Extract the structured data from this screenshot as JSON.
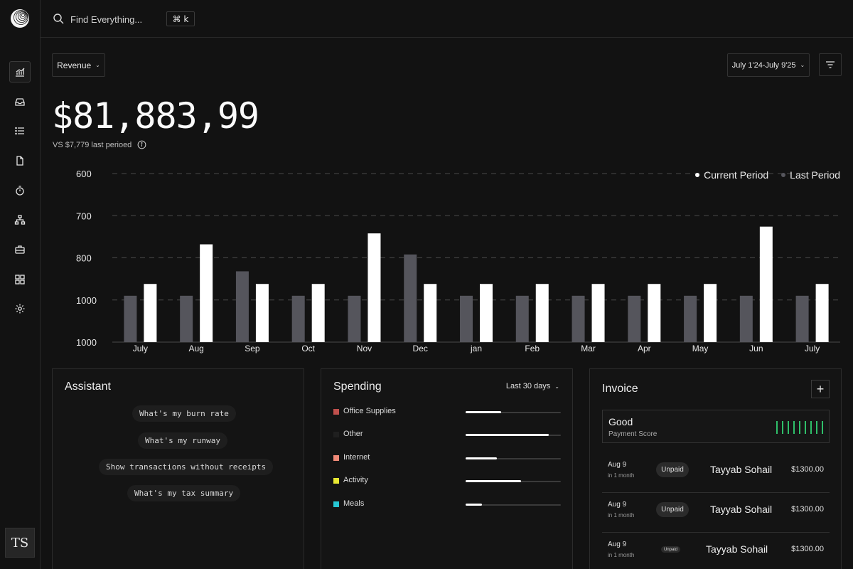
{
  "search": {
    "placeholder": "Find Everything...",
    "shortcut": "⌘ k"
  },
  "nav": [
    {
      "name": "analytics",
      "icon": "chart-icon"
    },
    {
      "name": "inbox",
      "icon": "inbox-icon"
    },
    {
      "name": "list",
      "icon": "list-icon"
    },
    {
      "name": "document",
      "icon": "document-icon"
    },
    {
      "name": "timer",
      "icon": "timer-icon"
    },
    {
      "name": "network",
      "icon": "network-icon"
    },
    {
      "name": "briefcase",
      "icon": "briefcase-icon"
    },
    {
      "name": "apps",
      "icon": "grid-icon"
    },
    {
      "name": "settings",
      "icon": "gear-icon"
    }
  ],
  "user": {
    "initials": "TS"
  },
  "header": {
    "metric": "Revenue",
    "date_range": "July 1'24-July 9'25",
    "total": "$81,883,99",
    "comparison": "VS $7,779 last perioed"
  },
  "chart_data": {
    "type": "bar",
    "categories": [
      "July",
      "Aug",
      "Sep",
      "Oct",
      "Nov",
      "Dec",
      "jan",
      "Feb",
      "Mar",
      "Apr",
      "May",
      "Jun",
      "July"
    ],
    "y_tick_labels": [
      "600",
      "700",
      "800",
      "1000",
      "1000"
    ],
    "grid": true,
    "legend": "top-right",
    "series": [
      {
        "name": "Last Period",
        "color": "#55555c",
        "values": [
          0.275,
          0.275,
          0.42,
          0.275,
          0.275,
          0.52,
          0.275,
          0.275,
          0.275,
          0.275,
          0.275,
          0.275,
          0.275
        ]
      },
      {
        "name": "Current Period",
        "color": "#ffffff",
        "values": [
          0.345,
          0.58,
          0.345,
          0.345,
          0.645,
          0.345,
          0.345,
          0.345,
          0.345,
          0.345,
          0.345,
          0.685,
          0.345
        ]
      }
    ]
  },
  "assistant": {
    "title": "Assistant",
    "suggestions": [
      "What's my burn rate",
      "What's my runway",
      "Show transactions without receipts",
      "What's my tax summary"
    ]
  },
  "spending": {
    "title": "Spending",
    "range": "Last 30 days",
    "items": [
      {
        "label": "Office Supplies",
        "color": "#c0504d",
        "share": 0.37
      },
      {
        "label": "Other",
        "color": "#1f1f1f",
        "share": 0.87
      },
      {
        "label": "Internet",
        "color": "#f08a78",
        "share": 0.33
      },
      {
        "label": "Activity",
        "color": "#e8e832",
        "share": 0.58
      },
      {
        "label": "Meals",
        "color": "#27c7d4",
        "share": 0.17
      }
    ]
  },
  "invoice": {
    "title": "Invoice",
    "add_symbol": "+",
    "score": {
      "label": "Good",
      "sub": "Payment Score",
      "bars": 9,
      "color": "#2fbf6a"
    },
    "rows": [
      {
        "date": "Aug 9",
        "due": "in 1 month",
        "status": "Unpaid",
        "name": "Tayyab Sohail",
        "amount": "$1300.00"
      },
      {
        "date": "Aug 9",
        "due": "in 1 month",
        "status": "Unpaid",
        "name": "Tayyab Sohail",
        "amount": "$1300.00"
      },
      {
        "date": "Aug 9",
        "due": "in 1 month",
        "status": "Unpaid",
        "name": "Tayyab Sohail",
        "amount": "$1300.00"
      }
    ]
  }
}
